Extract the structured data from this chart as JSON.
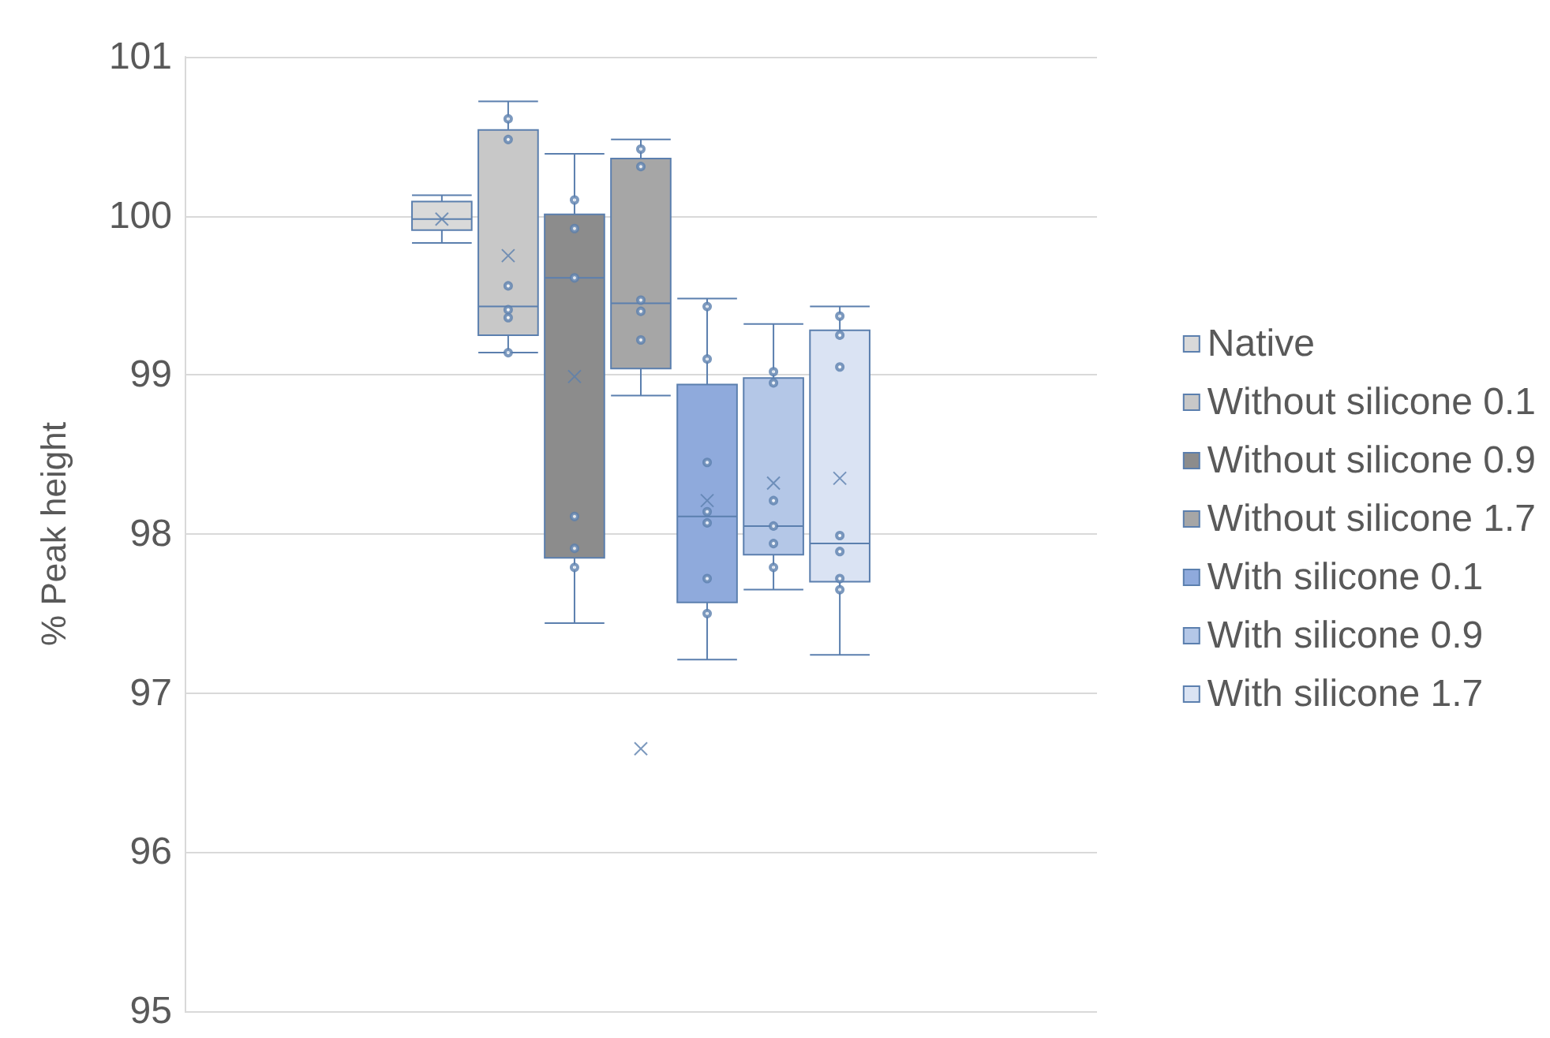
{
  "chart_data": {
    "type": "box",
    "ylabel": "% Peak height",
    "categories": [
      null
    ],
    "ylim": [
      95,
      101
    ],
    "yticks": [
      95,
      96,
      97,
      98,
      99,
      100,
      101
    ],
    "grid": "y",
    "legend": "right",
    "marker": "circle",
    "series": [
      {
        "name": "Native",
        "color": "#d9d9d9",
        "boxes": [
          {
            "low": 99.83,
            "q1": 99.91,
            "median": 99.98,
            "q3": 100.09,
            "high": 100.13,
            "mean": 99.98
          }
        ]
      },
      {
        "name": "Without silicone 0.1",
        "color": "#c8c8c8",
        "boxes": [
          {
            "low": 99.14,
            "q1": 99.25,
            "median": 99.43,
            "q3": 100.54,
            "high": 100.72,
            "mean": 99.75,
            "outliers": [
              100.61,
              100.48,
              99.56,
              99.41,
              99.36,
              99.14
            ]
          }
        ]
      },
      {
        "name": "Without silicone 0.9",
        "color": "#8c8c8c",
        "boxes": [
          {
            "low": 97.44,
            "q1": 97.85,
            "median": 99.61,
            "q3": 100.01,
            "high": 100.39,
            "mean": 98.99,
            "outliers": [
              100.1,
              99.92,
              99.61,
              98.11,
              97.91,
              97.79
            ]
          }
        ]
      },
      {
        "name": "Without silicone 1.7",
        "color": "#a6a6a6",
        "boxes": [
          {
            "low": 98.87,
            "q1": 99.04,
            "median": 99.45,
            "q3": 100.36,
            "high": 100.48,
            "mean": 96.65,
            "outliers": [
              100.42,
              100.31,
              99.47,
              99.4,
              99.22
            ]
          }
        ]
      },
      {
        "name": "With silicone 0.1",
        "color": "#8faadc",
        "boxes": [
          {
            "low": 97.21,
            "q1": 97.57,
            "median": 98.11,
            "q3": 98.94,
            "high": 99.48,
            "mean": 98.21,
            "outliers": [
              99.43,
              99.1,
              98.45,
              98.14,
              98.07,
              97.72,
              97.5
            ]
          }
        ]
      },
      {
        "name": "With silicone 0.9",
        "color": "#b4c7e7",
        "boxes": [
          {
            "low": 97.65,
            "q1": 97.87,
            "median": 98.05,
            "q3": 98.98,
            "high": 99.32,
            "mean": 98.32,
            "outliers": [
              99.02,
              98.95,
              98.21,
              98.05,
              97.94,
              97.79
            ]
          }
        ]
      },
      {
        "name": "With silicone 1.7",
        "color": "#dae3f3",
        "boxes": [
          {
            "low": 97.24,
            "q1": 97.7,
            "median": 97.94,
            "q3": 99.28,
            "high": 99.43,
            "mean": 98.35,
            "outliers": [
              99.37,
              99.25,
              99.05,
              97.99,
              97.89,
              97.72,
              97.65
            ]
          }
        ]
      }
    ]
  }
}
